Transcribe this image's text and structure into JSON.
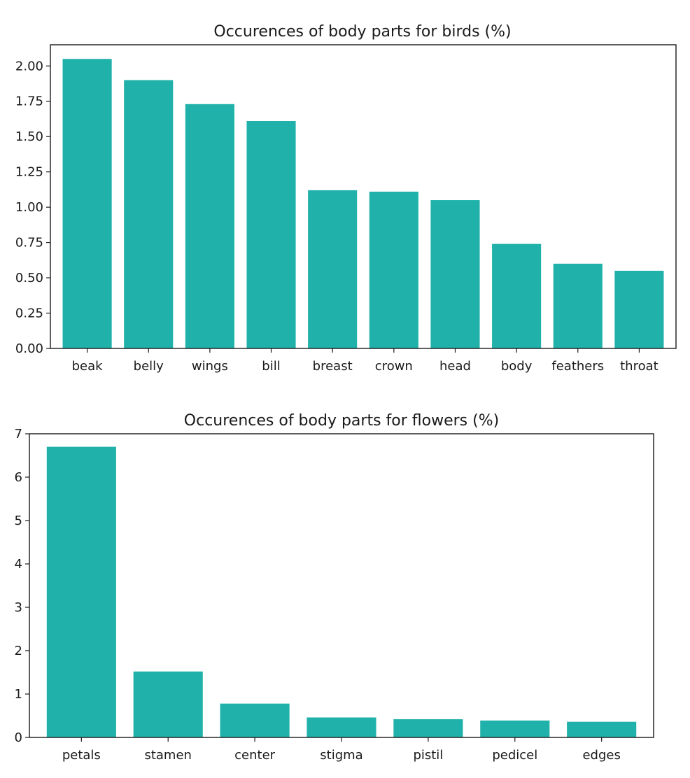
{
  "colors": {
    "bar": "#20b2aa",
    "axis": "#1a1a1a",
    "background": "#ffffff"
  },
  "chart_data": [
    {
      "type": "bar",
      "title": "Occurences of body parts for birds (%)",
      "xlabel": "",
      "ylabel": "",
      "categories": [
        "beak",
        "belly",
        "wings",
        "bill",
        "breast",
        "crown",
        "head",
        "body",
        "feathers",
        "throat"
      ],
      "values": [
        2.05,
        1.9,
        1.73,
        1.61,
        1.12,
        1.11,
        1.05,
        0.74,
        0.6,
        0.55
      ],
      "ylim": [
        0,
        2.15
      ],
      "yticks": [
        0.0,
        0.25,
        0.5,
        0.75,
        1.0,
        1.25,
        1.5,
        1.75,
        2.0
      ],
      "ytick_labels": [
        "0.00",
        "0.25",
        "0.50",
        "0.75",
        "1.00",
        "1.25",
        "1.50",
        "1.75",
        "2.00"
      ],
      "grid": false,
      "legend": false
    },
    {
      "type": "bar",
      "title": "Occurences of body parts for flowers (%)",
      "xlabel": "",
      "ylabel": "",
      "categories": [
        "petals",
        "stamen",
        "center",
        "stigma",
        "pistil",
        "pedicel",
        "edges"
      ],
      "values": [
        6.7,
        1.52,
        0.78,
        0.46,
        0.42,
        0.39,
        0.36
      ],
      "ylim": [
        0,
        7.0
      ],
      "yticks": [
        0,
        1,
        2,
        3,
        4,
        5,
        6,
        7
      ],
      "ytick_labels": [
        "0",
        "1",
        "2",
        "3",
        "4",
        "5",
        "6",
        "7"
      ],
      "grid": false,
      "legend": false
    }
  ]
}
